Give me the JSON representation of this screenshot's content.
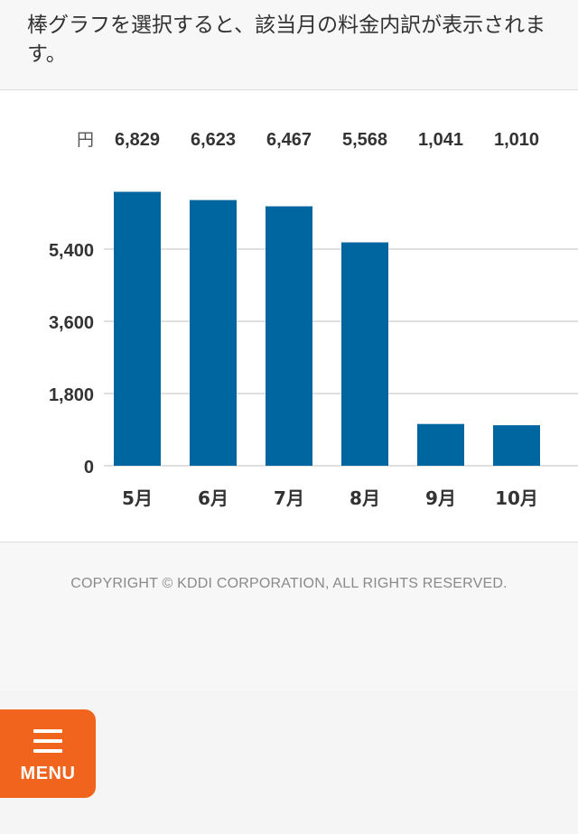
{
  "instruction": {
    "text": "棒グラフを選択すると、該当月の料金内訳が表示されます。"
  },
  "chart_data": {
    "type": "bar",
    "unit_label": "円",
    "categories": [
      "5月",
      "6月",
      "7月",
      "8月",
      "9月",
      "10月"
    ],
    "values": [
      6829,
      6623,
      6467,
      5568,
      1041,
      1010
    ],
    "value_labels": [
      "6,829",
      "6,623",
      "6,467",
      "5,568",
      "1,041",
      "1,010"
    ],
    "yticks": [
      0,
      1800,
      3600,
      5400
    ],
    "ytick_labels": [
      "0",
      "1,800",
      "3,600",
      "5,400"
    ],
    "ylim": [
      0,
      7200
    ],
    "grid": true,
    "bar_color": "#00669f",
    "title": "",
    "xlabel": "",
    "ylabel": ""
  },
  "footer": {
    "copyright": "COPYRIGHT © KDDI CORPORATION, ALL RIGHTS RESERVED."
  },
  "menu": {
    "label": "MENU",
    "icon": "hamburger-icon",
    "color": "#f0641e"
  }
}
